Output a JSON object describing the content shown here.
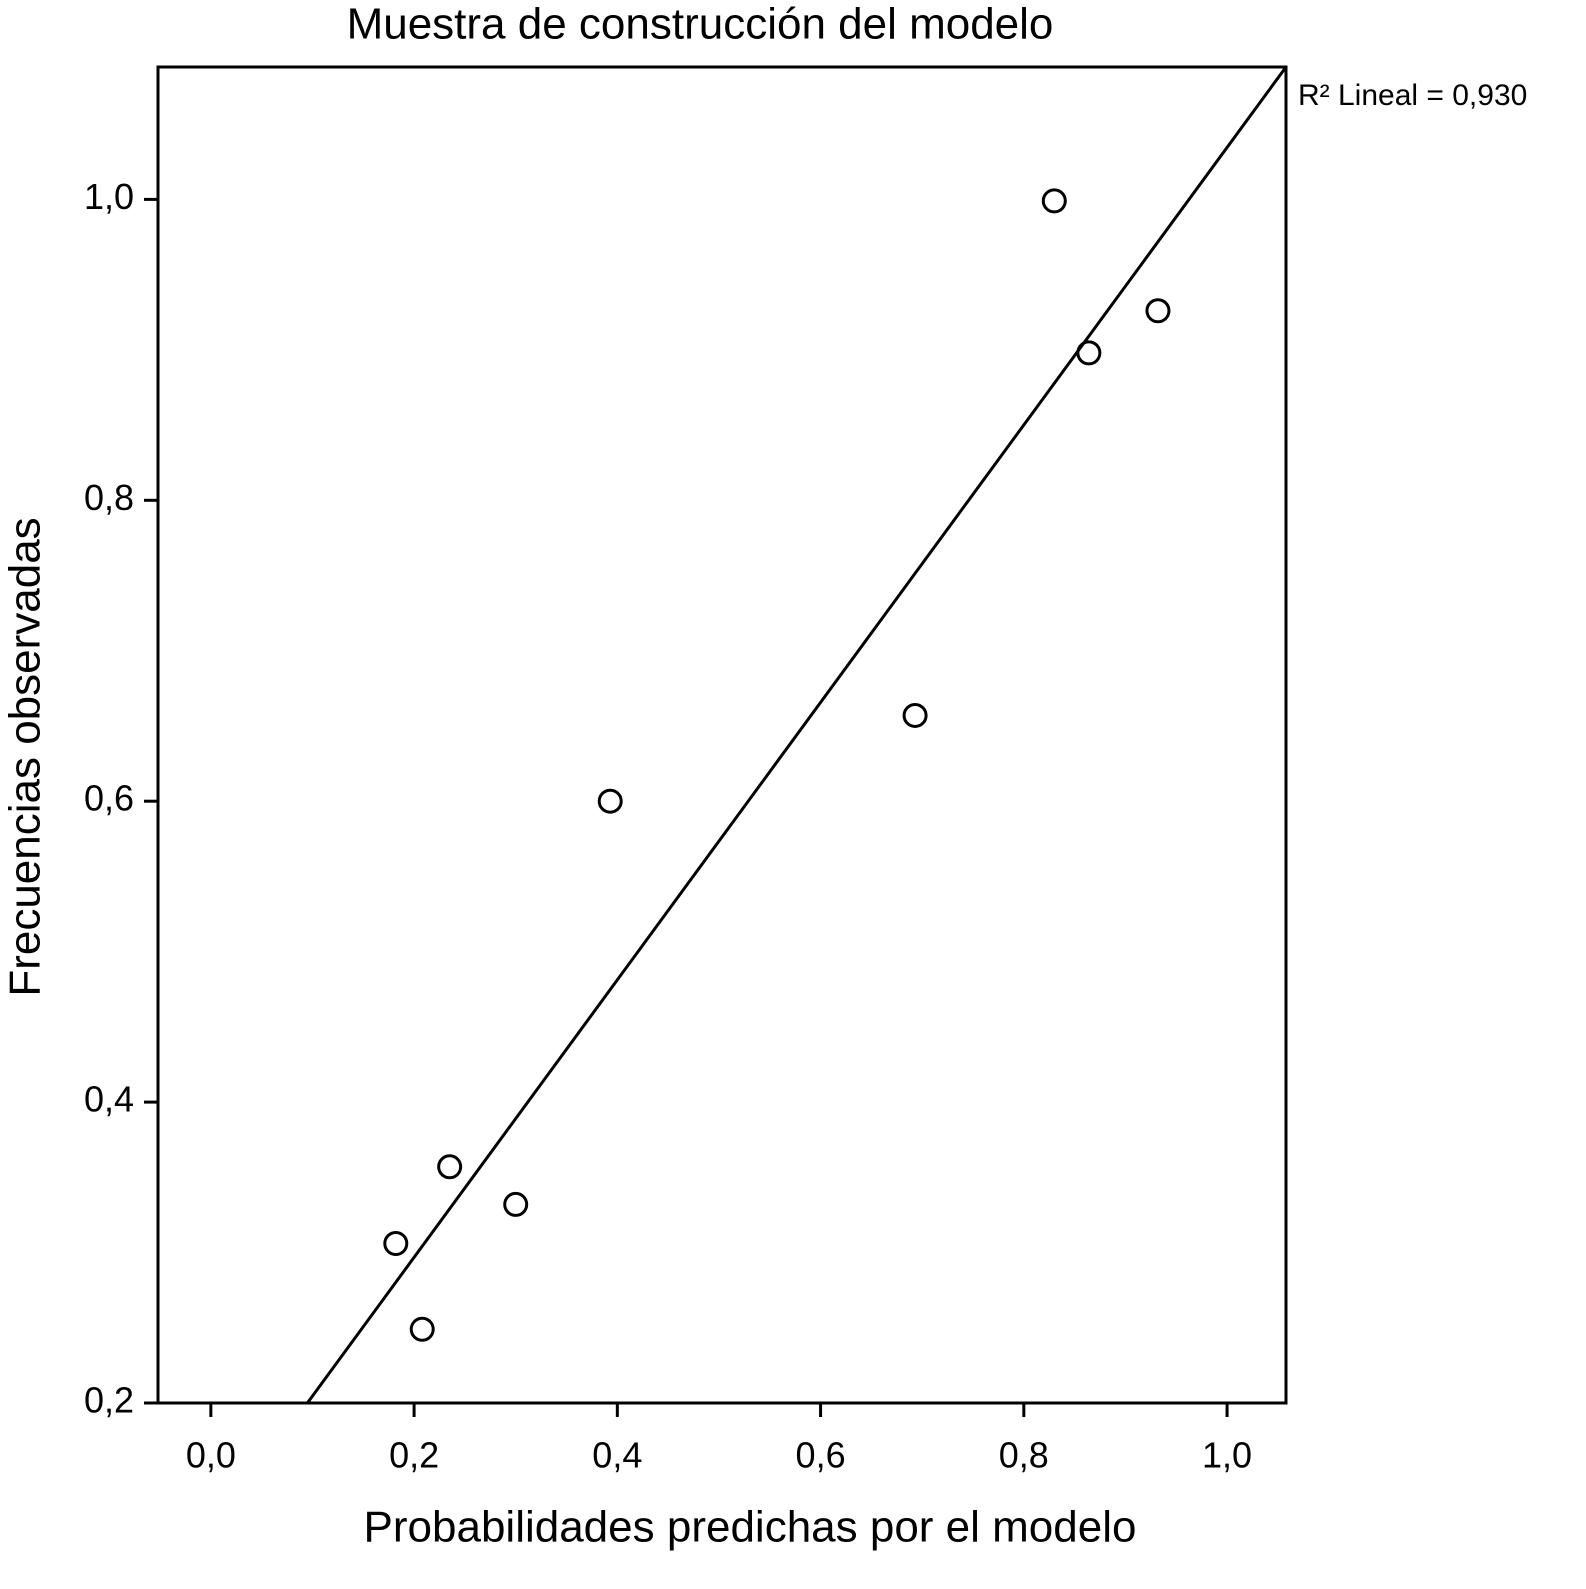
{
  "chart_data": {
    "type": "scatter",
    "title": "Muestra de construcción del modelo",
    "x_label": "Probabilidades predichas por el modelo",
    "y_label": "Frecuencias observadas",
    "annotation": "R² Lineal = 0,930",
    "x": [
      0.83,
      0.932,
      0.864,
      0.693,
      0.393,
      0.235,
      0.3,
      0.182,
      0.208
    ],
    "values": [
      0.999,
      0.926,
      0.898,
      0.657,
      0.6,
      0.357,
      0.332,
      0.306,
      0.249
    ],
    "color": "#000000",
    "fit_line": {
      "x": [
        0.095,
        1.058
      ],
      "y": [
        0.2,
        1.088
      ]
    },
    "xlim": [
      -0.052,
      1.058
    ],
    "ylim": [
      0.2,
      1.088
    ],
    "xticks": [
      {
        "value": 0.0,
        "label": "0,0"
      },
      {
        "value": 0.2,
        "label": "0,2"
      },
      {
        "value": 0.4,
        "label": "0,4"
      },
      {
        "value": 0.6,
        "label": "0,6"
      },
      {
        "value": 0.8,
        "label": "0,8"
      },
      {
        "value": 1.0,
        "label": "1,0"
      }
    ],
    "yticks": [
      {
        "value": 0.2,
        "label": "0,2"
      },
      {
        "value": 0.4,
        "label": "0,4"
      },
      {
        "value": 0.6,
        "label": "0,6"
      },
      {
        "value": 0.8,
        "label": "0,8"
      },
      {
        "value": 1.0,
        "label": "1,0"
      }
    ],
    "grid": false
  }
}
